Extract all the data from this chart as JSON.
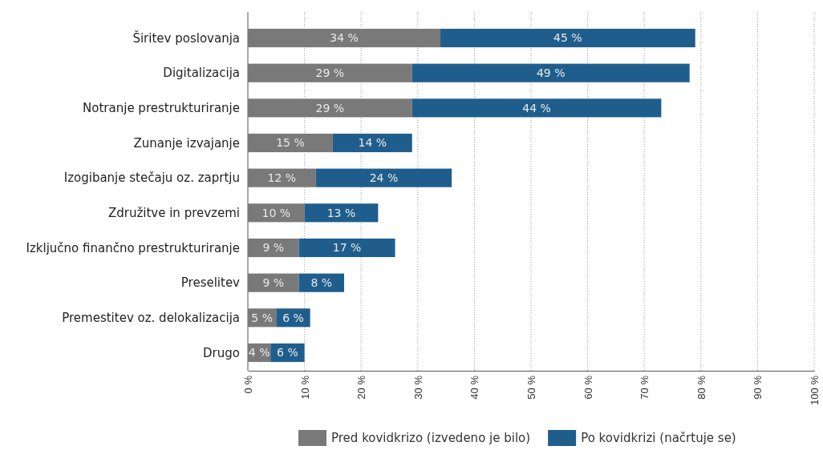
{
  "chart_data": {
    "type": "bar",
    "orientation": "horizontal",
    "stacked": true,
    "grid": "x",
    "legend": "bottom",
    "categories": [
      "Širitev poslovanja",
      "Digitalizacija",
      "Notranje prestrukturiranje",
      "Zunanje izvajanje",
      "Izogibanje stečaju oz. zaprtju",
      "Združitve in prevzemi",
      "Izključno finančno prestrukturiranje",
      "Preselitev",
      "Premestitev oz. delokalizacija",
      "Drugo"
    ],
    "series": [
      {
        "name": "Pred kovidkrizo (izvedeno je bilo)",
        "color": "#79797a",
        "values": [
          34,
          29,
          29,
          15,
          12,
          10,
          9,
          9,
          5,
          4
        ],
        "value_labels": [
          "34 %",
          "29 %",
          "29 %",
          "15 %",
          "12 %",
          "10 %",
          "9 %",
          "9 %",
          "5 %",
          "4 %"
        ]
      },
      {
        "name": "Po kovidkrizi (načrtuje se)",
        "color": "#1f5e8c",
        "values": [
          45,
          49,
          44,
          14,
          24,
          13,
          17,
          8,
          6,
          6
        ],
        "value_labels": [
          "45 %",
          "49 %",
          "44 %",
          "14 %",
          "24 %",
          "13 %",
          "17 %",
          "8 %",
          "6 %",
          "6 %"
        ]
      }
    ],
    "xlim": [
      0,
      100
    ],
    "xticks": [
      {
        "value": 0,
        "label": "0 %"
      },
      {
        "value": 10,
        "label": "10 %"
      },
      {
        "value": 20,
        "label": "20 %"
      },
      {
        "value": 30,
        "label": "30 %"
      },
      {
        "value": 40,
        "label": "40 %"
      },
      {
        "value": 50,
        "label": "50 %"
      },
      {
        "value": 60,
        "label": "60 %"
      },
      {
        "value": 70,
        "label": "70 %"
      },
      {
        "value": 80,
        "label": "80 %"
      },
      {
        "value": 90,
        "label": "90 %"
      },
      {
        "value": 100,
        "label": "100 %"
      }
    ]
  }
}
